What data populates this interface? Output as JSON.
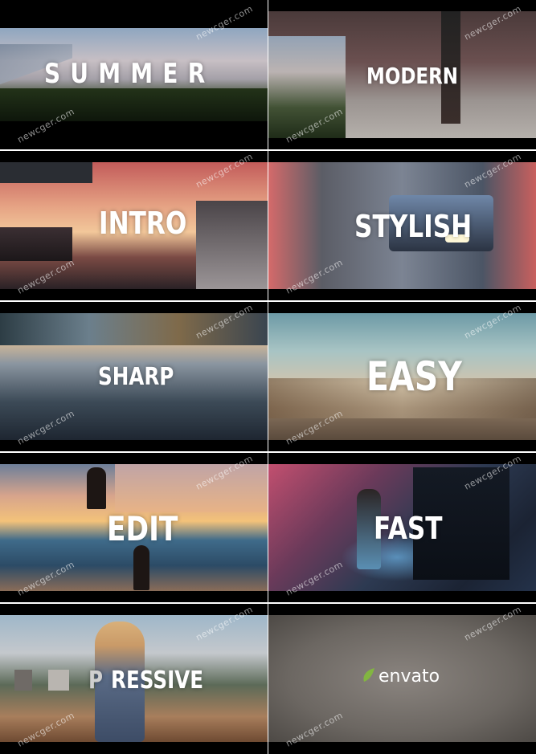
{
  "frames": [
    {
      "title": "SUMMER",
      "watermark": "newcger.com"
    },
    {
      "title": "MODERN",
      "watermark": "newcger.com"
    },
    {
      "title": "INTRO",
      "watermark": "newcger.com"
    },
    {
      "title": "STYLISH",
      "watermark": "newcger.com"
    },
    {
      "title": "SHARP",
      "watermark": "newcger.com"
    },
    {
      "title": "EASY",
      "watermark": "newcger.com"
    },
    {
      "title": "EDIT",
      "watermark": "newcger.com"
    },
    {
      "title": "FAST",
      "watermark": "newcger.com"
    },
    {
      "title_prefix": "P",
      "title": "RESSIVE",
      "watermark": "newcger.com"
    },
    {
      "logo": "envato",
      "watermark": "newcger.com"
    }
  ],
  "logo_icon": "envato-leaf-icon",
  "colors": {
    "envato_green": "#82b541",
    "letterbox": "#000000",
    "divider": "#ffffff"
  }
}
